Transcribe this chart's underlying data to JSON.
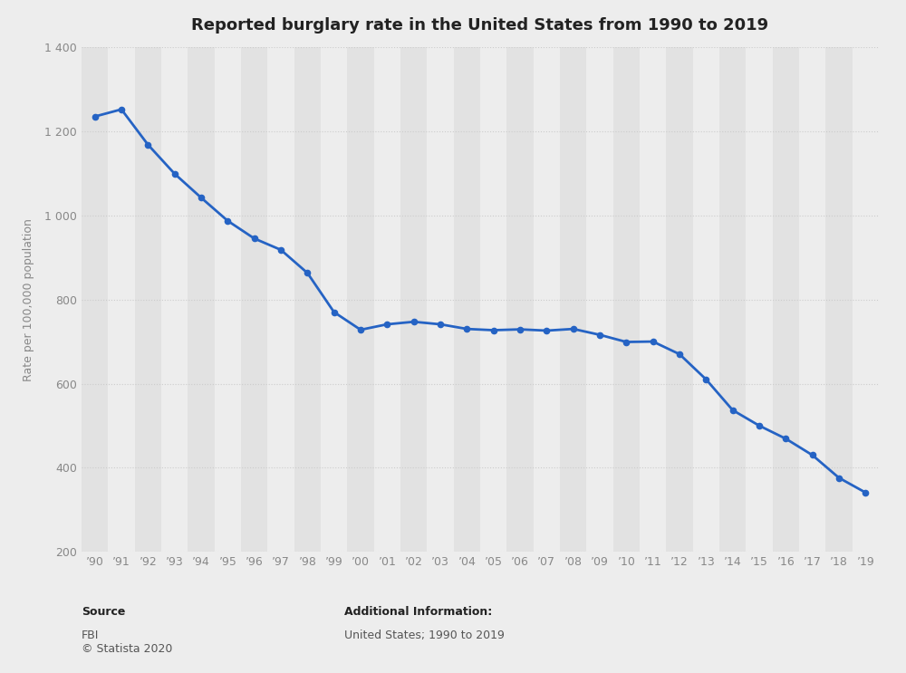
{
  "title": "Reported burglary rate in the United States from 1990 to 2019",
  "ylabel": "Rate per 100,000 population",
  "xlabel": "",
  "years": [
    "’90",
    "’91",
    "’92",
    "’93",
    "’94",
    "’95",
    "’96",
    "’97",
    "’98",
    "’99",
    "’00",
    "’01",
    "’02",
    "’03",
    "’04",
    "’05",
    "’06",
    "’07",
    "’08",
    "’09",
    "’10",
    "’11",
    "’12",
    "’13",
    "’14",
    "’15",
    "’16",
    "’17",
    "’18",
    "’19"
  ],
  "values": [
    1235,
    1252,
    1168,
    1099,
    1042,
    987,
    945,
    918,
    863,
    770,
    728,
    741,
    747,
    741,
    730,
    727,
    729,
    726,
    730,
    716,
    699,
    700,
    670,
    610,
    537,
    500,
    469,
    430,
    376,
    341
  ],
  "line_color": "#2563c4",
  "marker_color": "#2563c4",
  "marker_size": 4.5,
  "line_width": 2.0,
  "ylim": [
    200,
    1400
  ],
  "yticks": [
    200,
    400,
    600,
    800,
    1000,
    1200,
    1400
  ],
  "ytick_labels": [
    "200",
    "400",
    "600",
    "800",
    "1 000",
    "1 200",
    "1 400"
  ],
  "background_color": "#ededed",
  "plot_bg_color": "#ededed",
  "col_even_color": "#e2e2e2",
  "col_odd_color": "#ededed",
  "grid_color": "#cccccc",
  "title_fontsize": 13,
  "axis_label_fontsize": 9,
  "tick_fontsize": 9,
  "source_label": "Source",
  "source_body": "FBI\n© Statista 2020",
  "additional_label": "Additional Information:",
  "additional_body": "United States; 1990 to 2019",
  "footer_fontsize": 9
}
